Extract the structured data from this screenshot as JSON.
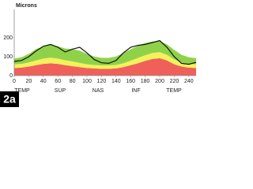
{
  "chart_data": {
    "type": "stacked-area-line",
    "title": "Microns",
    "x": [
      0,
      10,
      20,
      30,
      40,
      50,
      60,
      70,
      80,
      90,
      100,
      110,
      120,
      130,
      140,
      150,
      160,
      170,
      180,
      190,
      200,
      210,
      220,
      230,
      240,
      250
    ],
    "series": [
      {
        "color": "#f0605a",
        "values": [
          40,
          42,
          48,
          55,
          62,
          65,
          62,
          55,
          50,
          45,
          40,
          38,
          36,
          36,
          38,
          45,
          55,
          65,
          78,
          88,
          92,
          80,
          60,
          48,
          42,
          40
        ]
      },
      {
        "color": "#f4f25a",
        "values": [
          20,
          20,
          22,
          25,
          28,
          30,
          28,
          26,
          25,
          22,
          20,
          18,
          18,
          18,
          18,
          20,
          24,
          28,
          30,
          32,
          32,
          30,
          26,
          22,
          20,
          20
        ]
      },
      {
        "color": "#8fd24a",
        "values": [
          30,
          35,
          45,
          60,
          65,
          70,
          65,
          62,
          65,
          65,
          55,
          45,
          40,
          40,
          45,
          55,
          60,
          65,
          65,
          60,
          58,
          55,
          50,
          40,
          35,
          32
        ]
      }
    ],
    "line": {
      "color": "#111111",
      "values": [
        75,
        80,
        100,
        130,
        155,
        165,
        150,
        125,
        140,
        150,
        120,
        85,
        68,
        65,
        80,
        120,
        150,
        160,
        165,
        175,
        185,
        150,
        100,
        65,
        60,
        70
      ]
    },
    "xlim": [
      0,
      250
    ],
    "ylim": [
      0,
      350
    ],
    "xticks": [
      0,
      20,
      40,
      60,
      80,
      100,
      120,
      140,
      160,
      180,
      200,
      220,
      240
    ],
    "yticks": [
      0,
      100,
      200
    ],
    "region_labels": [
      "TEMP",
      "SUP",
      "NAS",
      "INF",
      "TEMP"
    ],
    "panel_label": "2a"
  }
}
